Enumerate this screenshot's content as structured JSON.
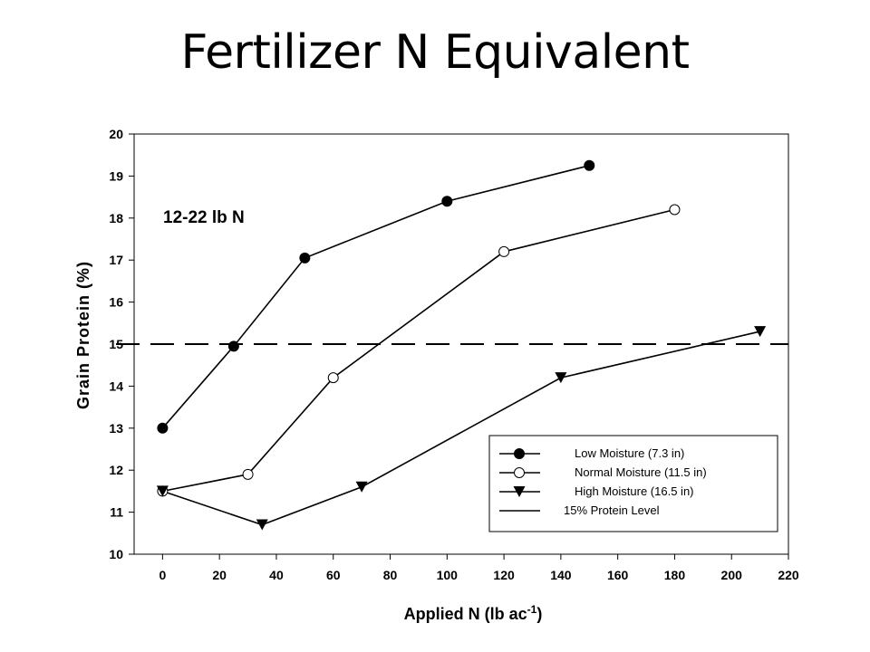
{
  "chart_data": {
    "type": "line",
    "title": "Fertilizer N Equivalent",
    "xlabel": "Applied N (lb ac",
    "xlabel_sup": "-1",
    "xlabel_suffix": ")",
    "ylabel": "Grain Protein (%)",
    "xlim": [
      -10,
      220
    ],
    "ylim": [
      10,
      20
    ],
    "xticks": [
      0,
      20,
      40,
      60,
      80,
      100,
      120,
      140,
      160,
      180,
      200,
      220
    ],
    "yticks": [
      10,
      11,
      12,
      13,
      14,
      15,
      16,
      17,
      18,
      19,
      20
    ],
    "grid": false,
    "legend_position": "bottom-right",
    "annotation": "12-22 lb N",
    "reference_line": {
      "y": 15,
      "name": "15% Protein Level",
      "style": "dashed"
    },
    "series": [
      {
        "name": "Low Moisture (7.3 in)",
        "marker": "filled-circle",
        "x": [
          0,
          25,
          50,
          100,
          150
        ],
        "y": [
          13.0,
          14.95,
          17.05,
          18.4,
          19.25
        ]
      },
      {
        "name": "Normal Moisture (11.5 in)",
        "marker": "open-circle",
        "x": [
          0,
          30,
          60,
          120,
          180
        ],
        "y": [
          11.5,
          11.9,
          14.2,
          17.2,
          18.2
        ]
      },
      {
        "name": "High Moisture (16.5 in)",
        "marker": "filled-triangle-down",
        "x": [
          0,
          35,
          70,
          140,
          210
        ],
        "y": [
          11.5,
          10.7,
          11.6,
          14.2,
          15.3
        ]
      }
    ]
  }
}
